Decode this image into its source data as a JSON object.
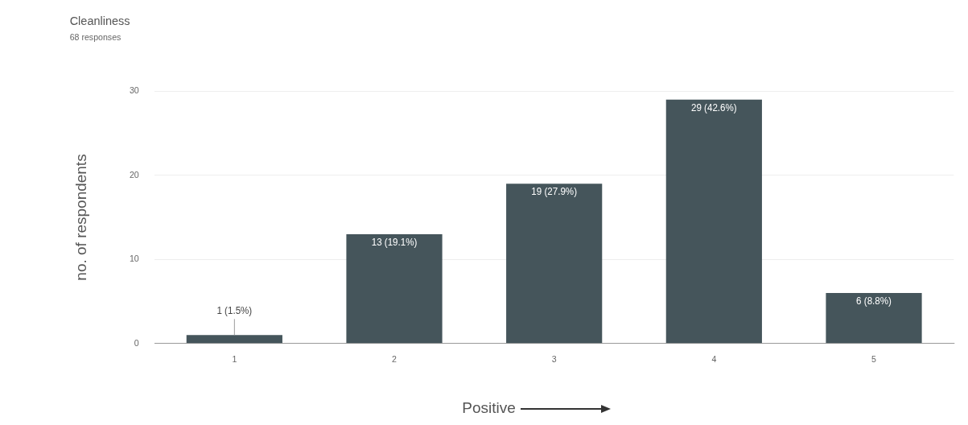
{
  "chart_data": {
    "type": "bar",
    "title": "Cleanliness",
    "subtitle": "68 responses",
    "xlabel": "Positive",
    "ylabel": "no. of respondents",
    "categories": [
      "1",
      "2",
      "3",
      "4",
      "5"
    ],
    "values": [
      1,
      13,
      19,
      29,
      6
    ],
    "value_labels": [
      "1 (1.5%)",
      "13 (19.1%)",
      "19 (27.9%)",
      "29 (42.6%)",
      "6 (8.8%)"
    ],
    "color": "#45555b",
    "ylim": [
      0,
      30
    ],
    "yticks": [
      0,
      10,
      20,
      30
    ],
    "grid": "y",
    "legend": false
  }
}
